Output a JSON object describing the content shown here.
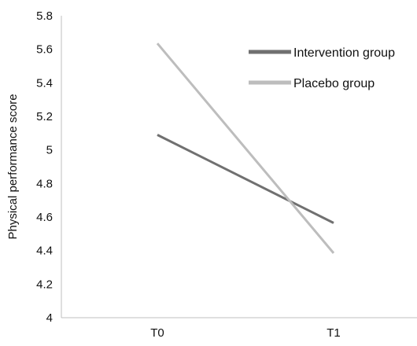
{
  "chart_data": {
    "type": "line",
    "title": "",
    "xlabel": "",
    "ylabel": "Physical performance score",
    "categories": [
      "T0",
      "T1"
    ],
    "ylim": [
      4,
      5.8
    ],
    "yticks": [
      "5.8",
      "5.6",
      "5.4",
      "5.2",
      "5",
      "4.8",
      "4.6",
      "4.4",
      "4.2",
      "4"
    ],
    "grid": false,
    "legend_position": "top-right",
    "series": [
      {
        "name": "Intervention group",
        "values": [
          5.09,
          4.565
        ],
        "color": "#707070"
      },
      {
        "name": "Placebo group",
        "values": [
          5.635,
          4.385
        ],
        "color": "#bdbdbd"
      }
    ]
  }
}
